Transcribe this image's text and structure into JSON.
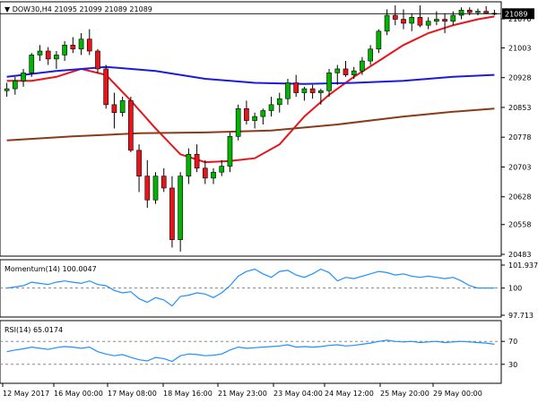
{
  "chart_data": [
    {
      "type": "candlestick",
      "title": "DOW30,H4",
      "ohlc_text": "21095 21099 21089 21089",
      "current_price": 21089,
      "ylim": [
        20483,
        21110
      ],
      "y_ticks": [
        "21076",
        "21003",
        "20928",
        "20853",
        "20778",
        "20703",
        "20628",
        "20558",
        "20483"
      ],
      "candles": [
        [
          20895,
          20915,
          20880,
          20900
        ],
        [
          20900,
          20930,
          20885,
          20920
        ],
        [
          20920,
          20950,
          20905,
          20940
        ],
        [
          20940,
          20990,
          20930,
          20985
        ],
        [
          20985,
          21010,
          20970,
          20995
        ],
        [
          20995,
          21005,
          20960,
          20975
        ],
        [
          20975,
          20995,
          20950,
          20985
        ],
        [
          20985,
          21020,
          20970,
          21010
        ],
        [
          21010,
          21030,
          20990,
          21000
        ],
        [
          21000,
          21040,
          20985,
          21025
        ],
        [
          21025,
          21050,
          20985,
          20995
        ],
        [
          20995,
          21000,
          20940,
          20950
        ],
        [
          20950,
          20960,
          20850,
          20860
        ],
        [
          20860,
          20890,
          20800,
          20840
        ],
        [
          20840,
          20880,
          20830,
          20870
        ],
        [
          20870,
          20880,
          20740,
          20745
        ],
        [
          20745,
          20760,
          20640,
          20680
        ],
        [
          20680,
          20720,
          20600,
          20620
        ],
        [
          20620,
          20690,
          20610,
          20680
        ],
        [
          20680,
          20700,
          20640,
          20650
        ],
        [
          20650,
          20680,
          20500,
          20520
        ],
        [
          20520,
          20690,
          20490,
          20680
        ],
        [
          20680,
          20750,
          20660,
          20735
        ],
        [
          20735,
          20760,
          20690,
          20700
        ],
        [
          20700,
          20720,
          20660,
          20675
        ],
        [
          20675,
          20700,
          20660,
          20690
        ],
        [
          20690,
          20720,
          20680,
          20705
        ],
        [
          20705,
          20790,
          20690,
          20780
        ],
        [
          20780,
          20860,
          20770,
          20850
        ],
        [
          20850,
          20870,
          20810,
          20820
        ],
        [
          20820,
          20840,
          20800,
          20830
        ],
        [
          20830,
          20850,
          20810,
          20845
        ],
        [
          20845,
          20880,
          20830,
          20860
        ],
        [
          20860,
          20890,
          20840,
          20875
        ],
        [
          20875,
          20925,
          20860,
          20915
        ],
        [
          20915,
          20935,
          20880,
          20890
        ],
        [
          20890,
          20905,
          20870,
          20900
        ],
        [
          20900,
          20910,
          20875,
          20890
        ],
        [
          20890,
          20900,
          20860,
          20895
        ],
        [
          20895,
          20950,
          20880,
          20940
        ],
        [
          20940,
          20960,
          20910,
          20950
        ],
        [
          20950,
          20970,
          20930,
          20935
        ],
        [
          20935,
          20955,
          20925,
          20945
        ],
        [
          20945,
          20980,
          20935,
          20970
        ],
        [
          20970,
          21010,
          20960,
          21000
        ],
        [
          21000,
          21050,
          20990,
          21045
        ],
        [
          21045,
          21100,
          21035,
          21085
        ],
        [
          21085,
          21110,
          21060,
          21075
        ],
        [
          21075,
          21100,
          21050,
          21065
        ],
        [
          21065,
          21090,
          21045,
          21080
        ],
        [
          21080,
          21110,
          21055,
          21060
        ],
        [
          21060,
          21080,
          21050,
          21070
        ],
        [
          21070,
          21095,
          21060,
          21075
        ],
        [
          21075,
          21090,
          21040,
          21070
        ],
        [
          21070,
          21095,
          21060,
          21085
        ],
        [
          21085,
          21105,
          21075,
          21098
        ],
        [
          21098,
          21105,
          21085,
          21092
        ],
        [
          21092,
          21102,
          21085,
          21095
        ],
        [
          21095,
          21108,
          21088,
          21090
        ],
        [
          21090,
          21099,
          21085,
          21089
        ]
      ],
      "series": [
        {
          "name": "",
          "color": "#e8141b",
          "values": [
            [
              0,
              20920
            ],
            [
              3,
              20920
            ],
            [
              6,
              20930
            ],
            [
              9,
              20950
            ],
            [
              12,
              20935
            ],
            [
              15,
              20870
            ],
            [
              18,
              20800
            ],
            [
              21,
              20735
            ],
            [
              24,
              20715
            ],
            [
              27,
              20718
            ],
            [
              30,
              20725
            ],
            [
              33,
              20760
            ],
            [
              36,
              20830
            ],
            [
              39,
              20885
            ],
            [
              42,
              20930
            ],
            [
              45,
              20970
            ],
            [
              48,
              21010
            ],
            [
              51,
              21040
            ],
            [
              54,
              21060
            ],
            [
              57,
              21075
            ],
            [
              59,
              21082
            ]
          ]
        },
        {
          "name": "",
          "color": "#1b1bdc",
          "values": [
            [
              0,
              20930
            ],
            [
              6,
              20945
            ],
            [
              12,
              20955
            ],
            [
              18,
              20945
            ],
            [
              24,
              20925
            ],
            [
              30,
              20915
            ],
            [
              36,
              20912
            ],
            [
              42,
              20915
            ],
            [
              48,
              20920
            ],
            [
              54,
              20930
            ],
            [
              59,
              20935
            ]
          ]
        },
        {
          "name": "",
          "color": "#8b3a1a",
          "values": [
            [
              0,
              20770
            ],
            [
              8,
              20780
            ],
            [
              16,
              20788
            ],
            [
              24,
              20790
            ],
            [
              32,
              20795
            ],
            [
              40,
              20810
            ],
            [
              48,
              20830
            ],
            [
              54,
              20842
            ],
            [
              59,
              20850
            ]
          ]
        }
      ],
      "x_tick_labels": [
        "12 May 2017",
        "16 May 00:00",
        "17 May 08:00",
        "18 May 16:00",
        "21 May 23:00",
        "23 May 04:00",
        "24 May 12:00",
        "25 May 20:00",
        "29 May 00:00"
      ]
    },
    {
      "type": "line",
      "title": "Momentum(14) 100.0047",
      "ylim": [
        97.713,
        101.937
      ],
      "y_ticks": [
        "101.937",
        "100",
        "97.713"
      ],
      "reference": 100,
      "series": [
        {
          "name": "",
          "color": "#1e90ff",
          "values": [
            100.0,
            100.1,
            100.2,
            100.5,
            100.4,
            100.3,
            100.5,
            100.6,
            100.5,
            100.4,
            100.6,
            100.3,
            100.2,
            99.8,
            99.6,
            99.7,
            99.1,
            98.8,
            99.2,
            99.0,
            98.5,
            99.3,
            99.4,
            99.6,
            99.5,
            99.2,
            99.6,
            100.2,
            101.0,
            101.4,
            101.6,
            101.2,
            100.9,
            101.4,
            101.5,
            101.1,
            100.9,
            101.2,
            101.6,
            101.3,
            100.6,
            100.9,
            100.8,
            101.0,
            101.2,
            101.4,
            101.3,
            101.1,
            101.2,
            101.0,
            100.9,
            101.0,
            100.9,
            100.8,
            100.9,
            100.6,
            100.2,
            100.0,
            100.0,
            100.0047
          ]
        }
      ]
    },
    {
      "type": "line",
      "title": "RSI(14) 65.0174",
      "ylim": [
        0,
        100
      ],
      "y_ticks": [
        "70",
        "30"
      ],
      "levels": [
        70,
        30
      ],
      "series": [
        {
          "name": "",
          "color": "#1e90ff",
          "values": [
            52,
            55,
            57,
            60,
            58,
            56,
            59,
            61,
            60,
            58,
            60,
            52,
            48,
            45,
            47,
            42,
            38,
            36,
            42,
            40,
            35,
            45,
            48,
            47,
            45,
            46,
            48,
            55,
            60,
            58,
            59,
            60,
            61,
            62,
            64,
            60,
            61,
            60,
            61,
            63,
            64,
            62,
            63,
            65,
            67,
            70,
            72,
            70,
            69,
            70,
            68,
            69,
            70,
            68,
            69,
            70,
            69,
            68,
            67,
            65.0174
          ]
        }
      ]
    }
  ]
}
